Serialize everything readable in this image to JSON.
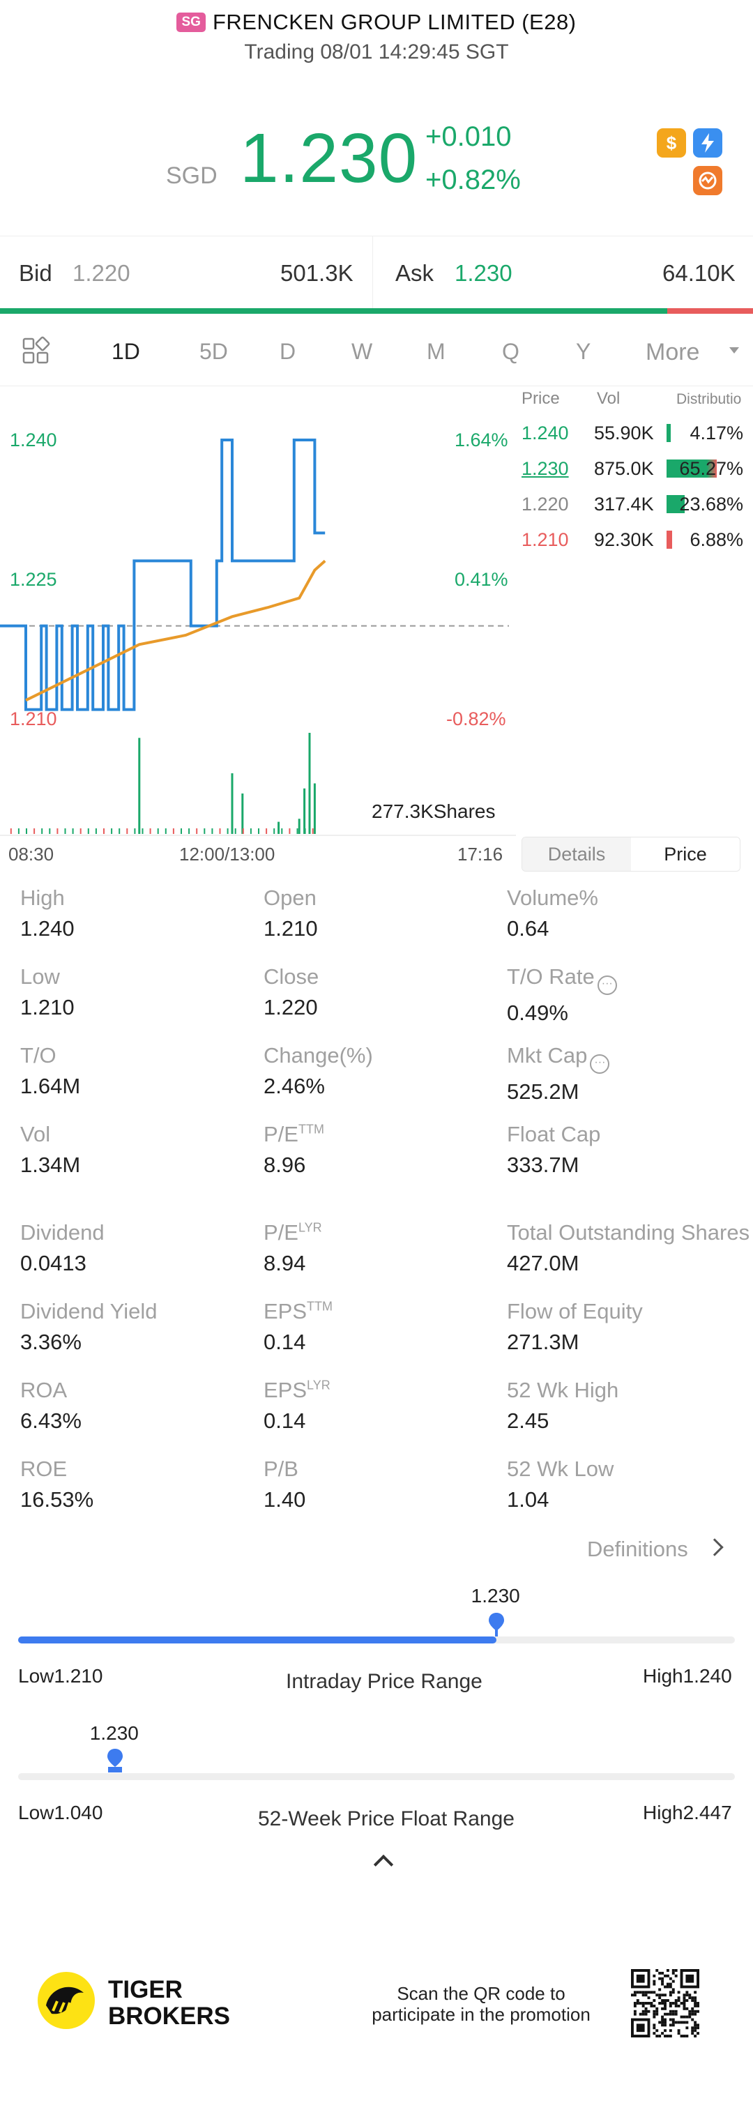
{
  "header": {
    "market_badge": "SG",
    "stock_name": "FRENCKEN GROUP LIMITED (E28)",
    "status": "Trading 08/01 14:29:45 SGT"
  },
  "quote": {
    "currency": "SGD",
    "price": "1.230",
    "change": "+0.010",
    "change_pct": "+0.82%",
    "color_up": "#1aa86a",
    "color_down": "#e85c5c"
  },
  "icons": {
    "dollar": "dollar-icon",
    "flash": "flash-icon",
    "orange": "activity-icon"
  },
  "bidask": {
    "bid_label": "Bid",
    "bid_price": "1.220",
    "bid_vol": "501.3K",
    "ask_label": "Ask",
    "ask_price": "1.230",
    "ask_vol": "64.10K",
    "bid_ratio": 0.886
  },
  "period_tabs": [
    "1D",
    "5D",
    "D",
    "W",
    "M",
    "Q",
    "Y"
  ],
  "more_label": "More",
  "chart": {
    "y_labels_left": [
      "1.240",
      "1.225",
      "1.210"
    ],
    "y_labels_right": [
      "1.64%",
      "0.41%",
      "-0.82%"
    ],
    "shares_label": "277.3KShares",
    "time_labels": [
      "08:30",
      "12:00/13:00",
      "17:16"
    ]
  },
  "chart_data": {
    "type": "line",
    "x_range": [
      "08:30",
      "17:16"
    ],
    "ylim": [
      1.21,
      1.24
    ],
    "prev_close": 1.22,
    "series": [
      {
        "x": [
          0,
          0.04,
          0.05,
          0.08,
          0.09,
          0.11,
          0.12,
          0.14,
          0.15,
          0.17,
          0.18,
          0.2,
          0.21,
          0.23,
          0.24,
          0.26,
          0.27,
          0.36,
          0.37,
          0.42,
          0.43,
          0.44,
          0.45,
          0.56,
          0.57,
          0.6,
          0.61,
          0.62,
          0.63
        ],
        "values": [
          1.22,
          1.22,
          1.211,
          1.22,
          1.211,
          1.22,
          1.211,
          1.22,
          1.211,
          1.22,
          1.211,
          1.22,
          1.211,
          1.22,
          1.211,
          1.227,
          1.227,
          1.227,
          1.22,
          1.227,
          1.24,
          1.24,
          1.227,
          1.227,
          1.24,
          1.24,
          1.23,
          1.23,
          1.23
        ]
      },
      {
        "x": [
          0.05,
          0.27,
          0.36,
          0.45,
          0.52,
          0.58,
          0.61,
          0.63
        ],
        "values": [
          1.212,
          1.218,
          1.219,
          1.221,
          1.222,
          1.223,
          1.226,
          1.227
        ]
      }
    ],
    "volume_bars": [
      {
        "x": 0.27,
        "v": 0.95
      },
      {
        "x": 0.45,
        "v": 0.6
      },
      {
        "x": 0.47,
        "v": 0.4
      },
      {
        "x": 0.54,
        "v": 0.12
      },
      {
        "x": 0.58,
        "v": 0.15
      },
      {
        "x": 0.59,
        "v": 0.45
      },
      {
        "x": 0.6,
        "v": 1.0
      },
      {
        "x": 0.61,
        "v": 0.5
      }
    ]
  },
  "distribution": {
    "headers": [
      "Price",
      "Vol",
      "Distributio"
    ],
    "rows": [
      {
        "price": "1.240",
        "vol": "55.90K",
        "pct": "4.17%",
        "ratio": 0.0417,
        "color": "#1aa86a",
        "underline": false
      },
      {
        "price": "1.230",
        "vol": "875.0K",
        "pct": "65.27%",
        "ratio": 0.6527,
        "color": "#1aa86a",
        "underline": true
      },
      {
        "price": "1.220",
        "vol": "317.4K",
        "pct": "23.68%",
        "ratio": 0.2368,
        "color": "#888888",
        "underline": false
      },
      {
        "price": "1.210",
        "vol": "92.30K",
        "pct": "6.88%",
        "ratio": 0.0688,
        "color": "#e85c5c",
        "underline": false
      }
    ]
  },
  "toggle": {
    "details": "Details",
    "price": "Price"
  },
  "stats": [
    {
      "label": "High",
      "value": "1.240"
    },
    {
      "label": "Open",
      "value": "1.210"
    },
    {
      "label": "Volume%",
      "value": "0.64"
    },
    {
      "label": "Low",
      "value": "1.210"
    },
    {
      "label": "Close",
      "value": "1.220"
    },
    {
      "label": "T/O Rate",
      "value": "0.49%",
      "info": true
    },
    {
      "label": "T/O",
      "value": "1.64M"
    },
    {
      "label": "Change(%)",
      "value": "2.46%"
    },
    {
      "label": "Mkt Cap",
      "value": "525.2M",
      "info": true
    },
    {
      "label": "Vol",
      "value": "1.34M"
    },
    {
      "label": "P/E",
      "sup": "TTM",
      "value": "8.96"
    },
    {
      "label": "Float Cap",
      "value": "333.7M"
    },
    {
      "label": "Dividend",
      "value": "0.0413"
    },
    {
      "label": "P/E",
      "sup": "LYR",
      "value": "8.94"
    },
    {
      "label": "Total Outstanding Shares",
      "value": "427.0M"
    },
    {
      "label": "Dividend Yield",
      "value": "3.36%"
    },
    {
      "label": "EPS",
      "sup": "TTM",
      "value": "0.14"
    },
    {
      "label": "Flow of Equity",
      "value": "271.3M"
    },
    {
      "label": "ROA",
      "value": "6.43%"
    },
    {
      "label": "EPS",
      "sup": "LYR",
      "value": "0.14"
    },
    {
      "label": "52 Wk High",
      "value": "2.45"
    },
    {
      "label": "ROE",
      "value": "16.53%"
    },
    {
      "label": "P/B",
      "value": "1.40"
    },
    {
      "label": "52 Wk Low",
      "value": "1.04"
    }
  ],
  "definitions_label": "Definitions",
  "intraday_range": {
    "marker": "1.230",
    "low": "Low1.210",
    "high": "High1.240",
    "title": "Intraday Price Range",
    "position": 0.667
  },
  "week52_range": {
    "marker": "1.230",
    "low": "Low1.040",
    "high": "High2.447",
    "title": "52-Week Price Float Range",
    "position": 0.135
  },
  "footer": {
    "brand_line1": "TIGER",
    "brand_line2": "BROKERS",
    "promo_line1": "Scan the QR code to",
    "promo_line2": "participate in the promotion"
  }
}
